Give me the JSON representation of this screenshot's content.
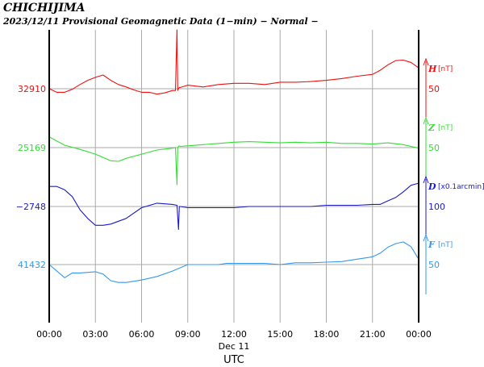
{
  "header": {
    "station": "CHICHIJIMA",
    "subtitle": "2023/12/11  Provisional Geomagnetic Data (1−min)  − Normal −"
  },
  "chart_data": {
    "type": "line",
    "title": "CHICHIJIMA",
    "subtitle": "2023/12/11  Provisional Geomagnetic Data (1−min)  − Normal −",
    "x_ticks": [
      "00:00",
      "03:00",
      "06:00",
      "09:00",
      "12:00",
      "15:00",
      "18:00",
      "21:00",
      "00:00"
    ],
    "x_date_label": "Dec 11",
    "x_label": "UTC",
    "xlim": [
      0,
      24
    ],
    "grid": true,
    "series": [
      {
        "name": "H",
        "unit": "[nT]",
        "color": "#ee1111",
        "baseline_label": "32910",
        "scale_label": "50",
        "scale_size": 50,
        "x": [
          0,
          0.5,
          1,
          1.5,
          2,
          2.5,
          3,
          3.5,
          4,
          4.5,
          5,
          5.5,
          6,
          6.5,
          7,
          7.5,
          8,
          8.2,
          8.3,
          8.35,
          8.4,
          8.45,
          8.5,
          9,
          10,
          11,
          12,
          13,
          14,
          15,
          16,
          17,
          18,
          19,
          20,
          21,
          21.5,
          22,
          22.5,
          23,
          23.5,
          24
        ],
        "values": [
          0,
          -6,
          -6,
          -1,
          7,
          14,
          19,
          23,
          14,
          7,
          3,
          -2,
          -6,
          -6,
          -9,
          -7,
          -3,
          -3,
          140,
          -3,
          0,
          2,
          2,
          6,
          3,
          7,
          9,
          9,
          7,
          11,
          11,
          12,
          14,
          17,
          21,
          24,
          31,
          40,
          47,
          48,
          44,
          35
        ]
      },
      {
        "name": "Z",
        "unit": "[nT]",
        "color": "#33dd33",
        "baseline_label": "25169",
        "scale_label": "50",
        "scale_size": 50,
        "x": [
          0,
          0.5,
          1,
          2,
          3,
          4,
          4.5,
          5,
          6,
          7,
          8,
          8.2,
          8.3,
          8.35,
          8.4,
          8.45,
          8.5,
          9,
          10,
          11,
          12,
          13,
          14,
          15,
          16,
          17,
          18,
          19,
          20,
          21,
          22,
          23,
          24
        ],
        "values": [
          18,
          11,
          4,
          -3,
          -11,
          -22,
          -23,
          -18,
          -11,
          -4,
          -1,
          0,
          -62,
          0,
          2,
          3,
          2,
          3,
          5,
          7,
          9,
          10,
          9,
          8,
          9,
          8,
          9,
          7,
          7,
          6,
          8,
          5,
          -1
        ]
      },
      {
        "name": "D",
        "unit": "[x0.1arcmin]",
        "color": "#1a1acc",
        "baseline_label": "−2748",
        "scale_label": "100",
        "scale_size": 100,
        "x": [
          0,
          0.5,
          1,
          1.5,
          2,
          2.5,
          3,
          3.5,
          4,
          5,
          6,
          7,
          8,
          8.3,
          8.4,
          8.45,
          8.5,
          9,
          10,
          11,
          12,
          13,
          14,
          15,
          16,
          17,
          18,
          19,
          20,
          21,
          21.5,
          22,
          22.5,
          23,
          23.5,
          24
        ],
        "values": [
          67,
          67,
          56,
          33,
          -11,
          -40,
          -63,
          -63,
          -59,
          -40,
          -4,
          11,
          7,
          4,
          -77,
          0,
          0,
          -4,
          -4,
          -4,
          -4,
          0,
          0,
          0,
          0,
          0,
          4,
          4,
          4,
          7,
          7,
          19,
          30,
          49,
          71,
          78
        ]
      },
      {
        "name": "F",
        "unit": "[nT]",
        "color": "#3399ee",
        "baseline_label": "41432",
        "scale_label": "50",
        "scale_size": 50,
        "x": [
          0,
          0.5,
          1,
          1.5,
          2,
          3,
          3.5,
          4,
          4.5,
          5,
          6,
          7,
          8,
          9,
          10,
          11,
          11.5,
          12,
          13,
          14,
          15,
          16,
          17,
          18,
          19,
          20,
          21,
          21.5,
          22,
          22.5,
          23,
          23.5,
          24
        ],
        "values": [
          0,
          -11,
          -22,
          -14,
          -14,
          -12,
          -16,
          -27,
          -30,
          -30,
          -26,
          -20,
          -11,
          0,
          0,
          0,
          2,
          2,
          2,
          2,
          0,
          3,
          3,
          4,
          5,
          9,
          13,
          19,
          29,
          35,
          38,
          30,
          9
        ]
      }
    ]
  }
}
